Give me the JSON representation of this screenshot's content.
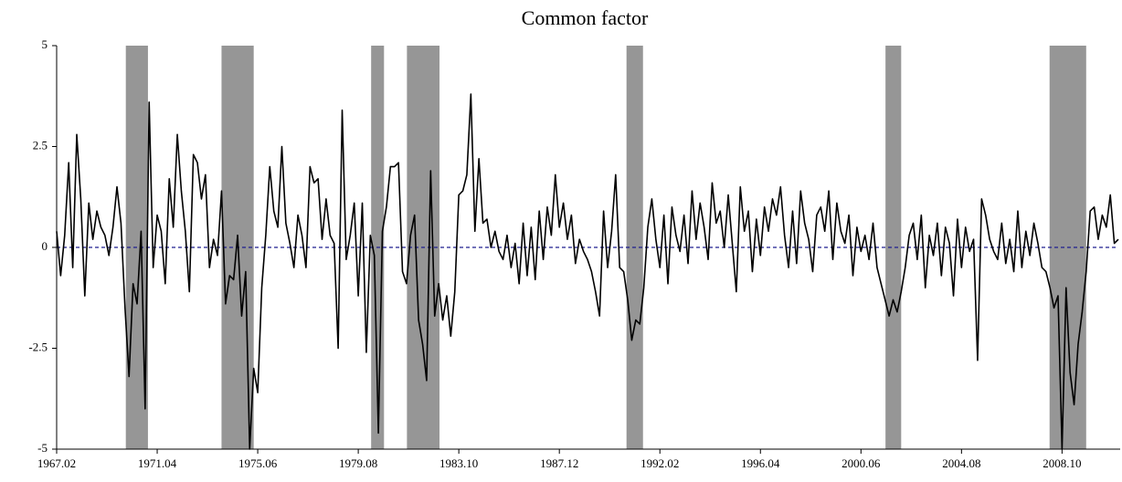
{
  "chart_data": {
    "type": "line",
    "title": "Common factor",
    "categories": [
      "1967.02",
      null,
      null,
      null,
      null,
      null,
      null,
      null,
      null,
      null,
      null,
      null,
      null,
      null,
      null,
      null,
      null,
      null,
      null,
      null,
      null,
      null,
      null,
      null,
      null,
      "1971.04",
      null,
      null,
      null,
      null,
      null,
      null,
      null,
      null,
      null,
      null,
      null,
      null,
      null,
      null,
      null,
      null,
      null,
      null,
      null,
      null,
      null,
      null,
      null,
      null,
      "1975.06",
      null,
      null,
      null,
      null,
      null,
      null,
      null,
      null,
      null,
      null,
      null,
      null,
      null,
      null,
      null,
      null,
      null,
      null,
      null,
      null,
      null,
      null,
      null,
      null,
      "1979.08",
      null,
      null,
      null,
      null,
      null,
      null,
      null,
      null,
      null,
      null,
      null,
      null,
      null,
      null,
      null,
      null,
      null,
      null,
      null,
      null,
      null,
      null,
      null,
      null,
      "1983.10",
      null,
      null,
      null,
      null,
      null,
      null,
      null,
      null,
      null,
      null,
      null,
      null,
      null,
      null,
      null,
      null,
      null,
      null,
      null,
      null,
      null,
      null,
      null,
      null,
      "1987.12",
      null,
      null,
      null,
      null,
      null,
      null,
      null,
      null,
      null,
      null,
      null,
      null,
      null,
      null,
      null,
      null,
      null,
      null,
      null,
      null,
      null,
      null,
      null,
      null,
      "1992.02",
      null,
      null,
      null,
      null,
      null,
      null,
      null,
      null,
      null,
      null,
      null,
      null,
      null,
      null,
      null,
      null,
      null,
      null,
      null,
      null,
      null,
      null,
      null,
      null,
      "1996.04",
      null,
      null,
      null,
      null,
      null,
      null,
      null,
      null,
      null,
      null,
      null,
      null,
      null,
      null,
      null,
      null,
      null,
      null,
      null,
      null,
      null,
      null,
      null,
      null,
      "2000.06",
      null,
      null,
      null,
      null,
      null,
      null,
      null,
      null,
      null,
      null,
      null,
      null,
      null,
      null,
      null,
      null,
      null,
      null,
      null,
      null,
      null,
      null,
      null,
      null,
      "2004.08",
      null,
      null,
      null,
      null,
      null,
      null,
      null,
      null,
      null,
      null,
      null,
      null,
      null,
      null,
      null,
      null,
      null,
      null,
      null,
      null,
      null,
      null,
      null,
      null,
      "2008.10",
      null,
      null,
      null,
      null,
      null,
      null,
      null,
      null,
      null,
      null,
      null,
      null,
      null,
      null
    ],
    "series": [
      {
        "color": "#000000",
        "values": [
          0.4,
          -0.7,
          0.3,
          2.1,
          -0.5,
          2.8,
          1.2,
          -1.2,
          1.1,
          0.2,
          0.9,
          0.5,
          0.3,
          -0.2,
          0.5,
          1.5,
          0.6,
          -1.5,
          -3.2,
          -0.9,
          -1.4,
          0.4,
          -4.0,
          3.6,
          -0.5,
          0.8,
          0.4,
          -0.9,
          1.7,
          0.5,
          2.8,
          1.4,
          0.4,
          -1.1,
          2.3,
          2.1,
          1.2,
          1.8,
          -0.5,
          0.2,
          -0.2,
          1.4,
          -1.4,
          -0.7,
          -0.8,
          0.3,
          -1.7,
          -0.6,
          -5.0,
          -3.0,
          -3.6,
          -1.0,
          0.3,
          2.0,
          0.9,
          0.5,
          2.5,
          0.6,
          0.1,
          -0.5,
          0.8,
          0.3,
          -0.5,
          2.0,
          1.6,
          1.7,
          0.2,
          1.2,
          0.3,
          0.1,
          -2.5,
          3.4,
          -0.3,
          0.3,
          1.1,
          -1.2,
          1.1,
          -2.6,
          0.3,
          -0.2,
          -4.6,
          0.4,
          1.0,
          2.0,
          2.0,
          2.1,
          -0.6,
          -0.9,
          0.3,
          0.8,
          -1.8,
          -2.4,
          -3.3,
          1.9,
          -1.7,
          -0.9,
          -1.8,
          -1.2,
          -2.2,
          -1.1,
          1.3,
          1.4,
          1.8,
          3.8,
          0.4,
          2.2,
          0.6,
          0.7,
          0.0,
          0.4,
          -0.1,
          -0.3,
          0.3,
          -0.5,
          0.1,
          -0.9,
          0.6,
          -0.7,
          0.5,
          -0.8,
          0.9,
          -0.3,
          1.0,
          0.3,
          1.8,
          0.5,
          1.1,
          0.2,
          0.8,
          -0.4,
          0.2,
          -0.1,
          -0.3,
          -0.6,
          -1.1,
          -1.7,
          0.9,
          -0.5,
          0.4,
          1.8,
          -0.5,
          -0.6,
          -1.3,
          -2.3,
          -1.8,
          -1.9,
          -1.0,
          0.5,
          1.2,
          0.2,
          -0.5,
          0.8,
          -0.9,
          1.0,
          0.3,
          -0.1,
          0.8,
          -0.4,
          1.4,
          0.2,
          1.1,
          0.5,
          -0.3,
          1.6,
          0.6,
          0.9,
          0.0,
          1.3,
          0.1,
          -1.1,
          1.5,
          0.4,
          0.9,
          -0.6,
          0.7,
          -0.2,
          1.0,
          0.4,
          1.2,
          0.8,
          1.5,
          0.3,
          -0.5,
          0.9,
          -0.4,
          1.4,
          0.6,
          0.2,
          -0.6,
          0.8,
          1.0,
          0.4,
          1.4,
          -0.3,
          1.1,
          0.4,
          0.1,
          0.8,
          -0.7,
          0.5,
          -0.1,
          0.3,
          -0.3,
          0.6,
          -0.5,
          -0.9,
          -1.3,
          -1.7,
          -1.3,
          -1.6,
          -1.1,
          -0.5,
          0.3,
          0.6,
          -0.3,
          0.8,
          -1.0,
          0.3,
          -0.2,
          0.6,
          -0.7,
          0.5,
          0.1,
          -1.2,
          0.7,
          -0.5,
          0.5,
          -0.1,
          0.2,
          -2.8,
          1.2,
          0.8,
          0.2,
          -0.1,
          -0.3,
          0.6,
          -0.4,
          0.2,
          -0.6,
          0.9,
          -0.5,
          0.4,
          -0.2,
          0.6,
          0.1,
          -0.5,
          -0.6,
          -1.0,
          -1.5,
          -1.2,
          -5.0,
          -1.0,
          -3.1,
          -3.9,
          -2.4,
          -1.6,
          -0.6,
          0.9,
          1.0,
          0.2,
          0.8,
          0.5,
          1.3,
          0.1,
          0.2
        ]
      }
    ],
    "shaded_periods": [
      {
        "start": 17.2,
        "end": 22.7
      },
      {
        "start": 41.0,
        "end": 49.0
      },
      {
        "start": 78.2,
        "end": 81.4
      },
      {
        "start": 87.1,
        "end": 95.2
      },
      {
        "start": 141.7,
        "end": 145.8
      },
      {
        "start": 206.1,
        "end": 210.0
      },
      {
        "start": 246.9,
        "end": 256.0
      }
    ],
    "shade_color": "#969696",
    "reference_line": {
      "value": 0,
      "color": "#1f1f8f"
    },
    "ylim": [
      -5,
      5
    ],
    "yticks": [
      5,
      2.5,
      0,
      -2.5,
      -5
    ]
  }
}
